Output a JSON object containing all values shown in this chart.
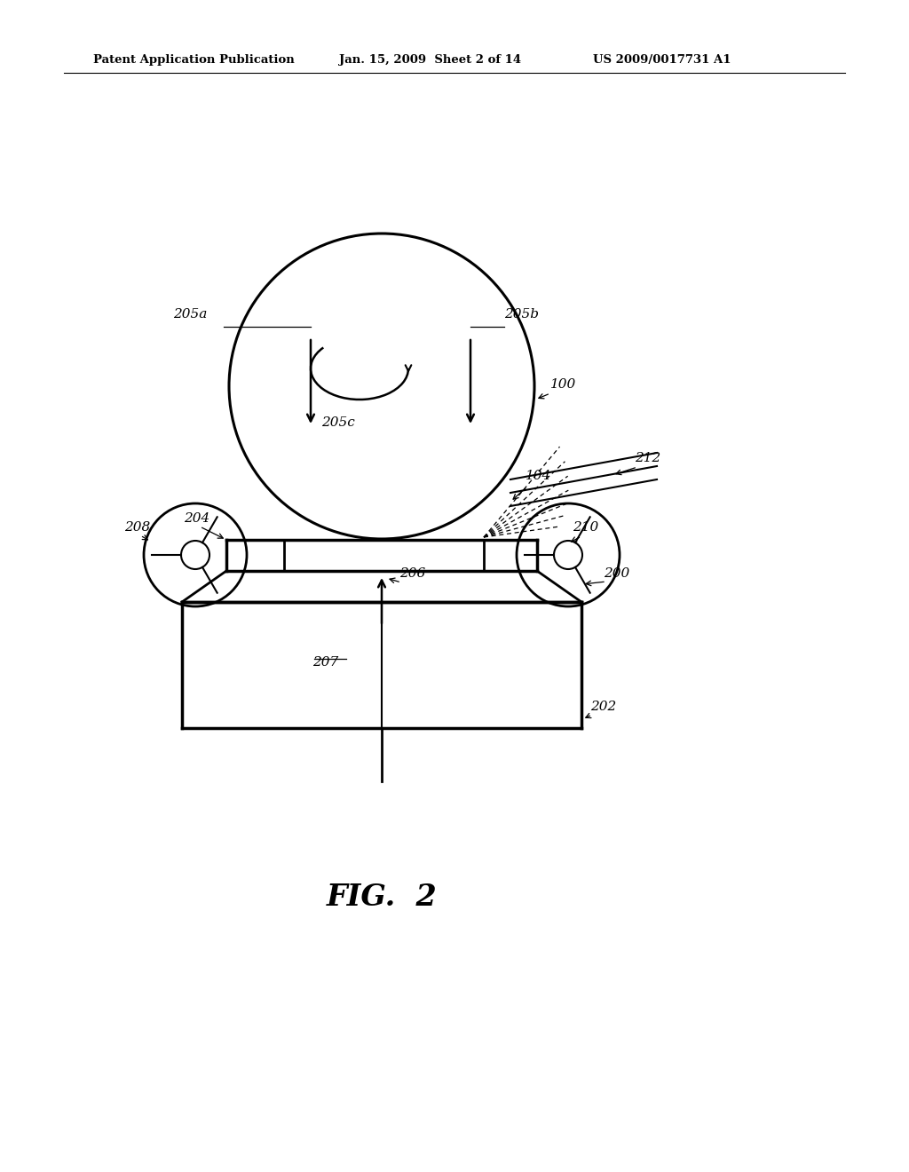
{
  "bg_color": "#ffffff",
  "header_left": "Patent Application Publication",
  "header_mid": "Jan. 15, 2009  Sheet 2 of 14",
  "header_right": "US 2009/0017731 A1",
  "fig_label": "FIG.  2",
  "line_color": "#000000"
}
